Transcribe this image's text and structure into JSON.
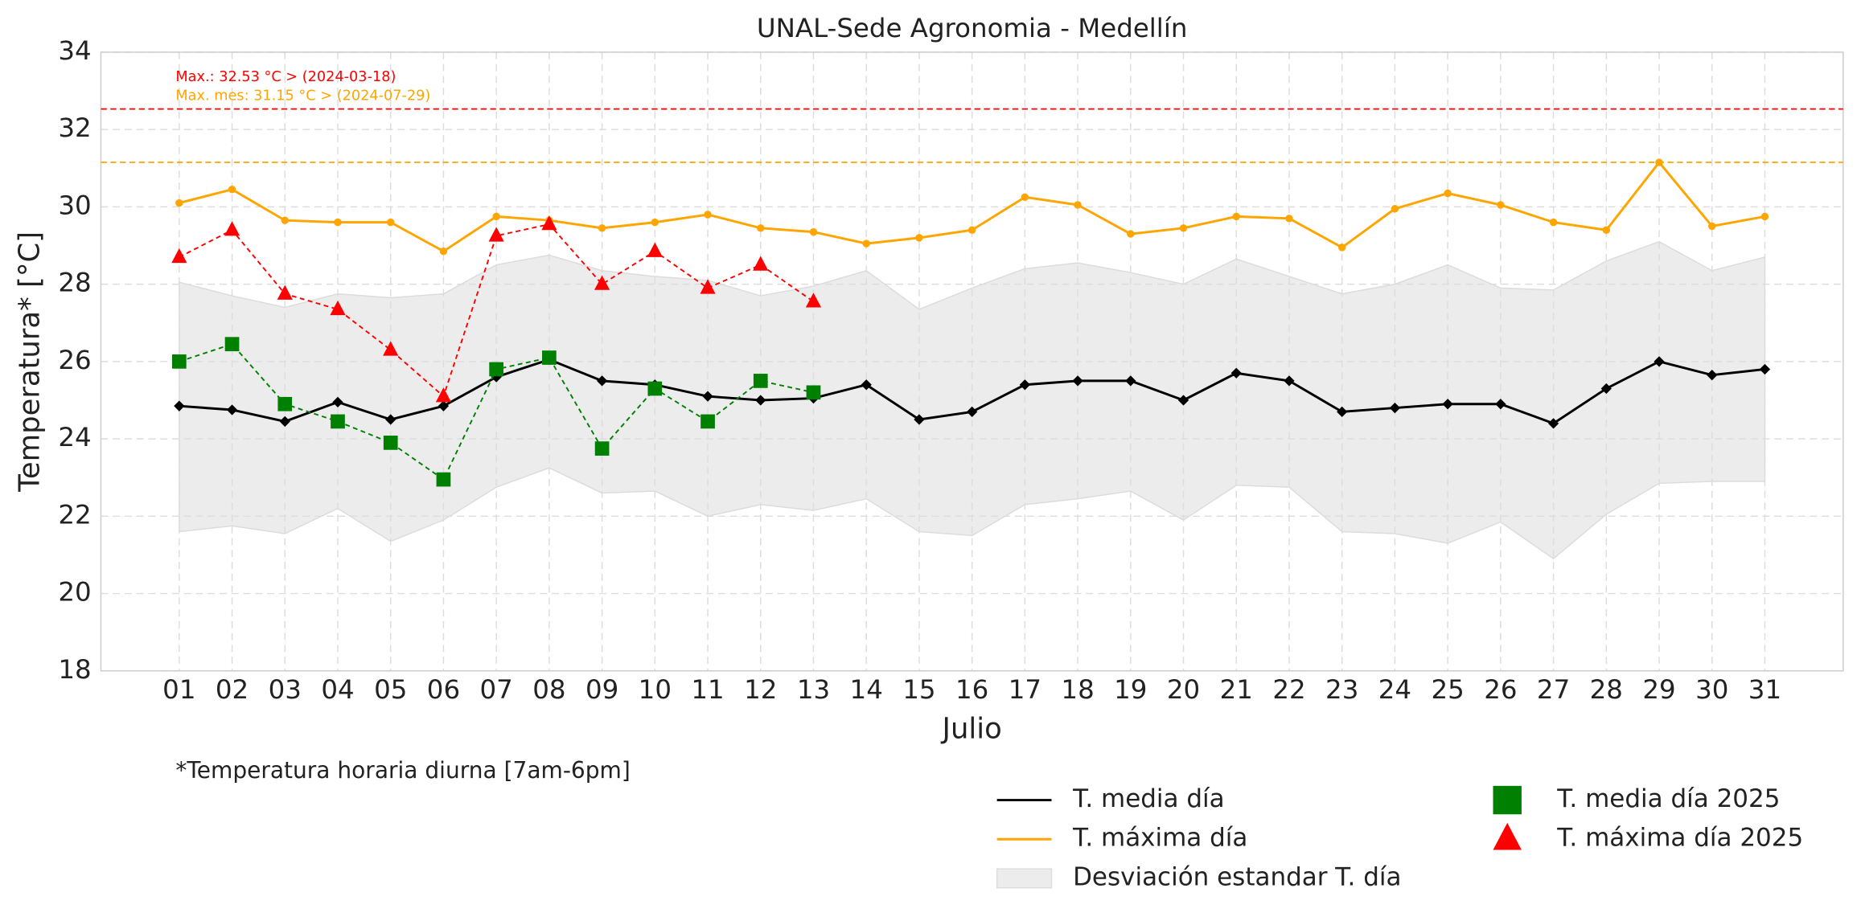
{
  "chart_data": {
    "type": "line",
    "title": "UNAL-Sede Agronomia - Medellín",
    "xlabel": "Julio",
    "ylabel": "Temperatura* [°C]",
    "footnote": "*Temperatura horaria diurna [7am-6pm]",
    "categories": [
      "01",
      "02",
      "03",
      "04",
      "05",
      "06",
      "07",
      "08",
      "09",
      "10",
      "11",
      "12",
      "13",
      "14",
      "15",
      "16",
      "17",
      "18",
      "19",
      "20",
      "21",
      "22",
      "23",
      "24",
      "25",
      "26",
      "27",
      "28",
      "29",
      "30",
      "31"
    ],
    "ylim": [
      18,
      34
    ],
    "yticks": [
      18,
      20,
      22,
      24,
      26,
      28,
      30,
      32,
      34
    ],
    "grid": true,
    "band": {
      "name": "Desviación estandar T. día",
      "color": "#ececec",
      "upper": [
        28.05,
        27.7,
        27.4,
        27.75,
        27.65,
        27.75,
        28.5,
        28.75,
        28.35,
        28.2,
        28.1,
        27.7,
        27.95,
        28.35,
        27.35,
        27.9,
        28.4,
        28.55,
        28.3,
        28.0,
        28.65,
        28.2,
        27.75,
        28.0,
        28.5,
        27.9,
        27.85,
        28.6,
        29.1,
        28.35,
        28.7
      ],
      "lower": [
        21.6,
        21.75,
        21.55,
        22.2,
        21.35,
        21.9,
        22.75,
        23.25,
        22.6,
        22.65,
        22.0,
        22.3,
        22.15,
        22.45,
        21.6,
        21.5,
        22.3,
        22.45,
        22.65,
        21.9,
        22.8,
        22.75,
        21.6,
        21.55,
        21.3,
        21.85,
        20.9,
        22.05,
        22.85,
        22.9,
        22.9
      ]
    },
    "series": [
      {
        "name": "T. media día",
        "color": "#000000",
        "marker": "diamond",
        "linestyle": "solid",
        "values": [
          24.85,
          24.75,
          24.45,
          24.95,
          24.5,
          24.85,
          25.6,
          26.05,
          25.5,
          25.4,
          25.1,
          25.0,
          25.05,
          25.4,
          24.5,
          24.7,
          25.4,
          25.5,
          25.5,
          25.0,
          25.7,
          25.5,
          24.7,
          24.8,
          24.9,
          24.9,
          24.4,
          25.3,
          26.0,
          25.65,
          25.8
        ]
      },
      {
        "name": "T. máxima día",
        "color": "#ffa500",
        "marker": "circle",
        "linestyle": "solid",
        "values": [
          30.1,
          30.45,
          29.65,
          29.6,
          29.6,
          28.85,
          29.75,
          29.65,
          29.45,
          29.6,
          29.8,
          29.45,
          29.35,
          29.05,
          29.2,
          29.4,
          30.25,
          30.05,
          29.3,
          29.45,
          29.75,
          29.7,
          28.95,
          29.95,
          30.35,
          30.05,
          29.6,
          29.4,
          31.15,
          29.5,
          29.75
        ]
      },
      {
        "name": "T. media día 2025",
        "color": "#008000",
        "marker": "square",
        "linestyle": "dashed",
        "values": [
          26.0,
          26.45,
          24.9,
          24.45,
          23.9,
          22.95,
          25.8,
          26.1,
          23.75,
          25.3,
          24.45,
          25.5,
          25.2,
          null,
          null,
          null,
          null,
          null,
          null,
          null,
          null,
          null,
          null,
          null,
          null,
          null,
          null,
          null,
          null,
          null,
          null
        ]
      },
      {
        "name": "T. máxima día 2025",
        "color": "#ff0000",
        "marker": "triangle",
        "linestyle": "dashed",
        "values": [
          28.7,
          29.4,
          27.75,
          27.35,
          26.3,
          25.1,
          29.25,
          29.55,
          28.0,
          28.85,
          27.9,
          28.5,
          27.55,
          null,
          null,
          null,
          null,
          null,
          null,
          null,
          null,
          null,
          null,
          null,
          null,
          null,
          null,
          null,
          null,
          null,
          null
        ]
      }
    ],
    "reference_lines": [
      {
        "value": 32.53,
        "color": "#ff0000",
        "label": "Max.: 32.53 °C  >  (2024-03-18)"
      },
      {
        "value": 31.15,
        "color": "#ffa500",
        "label": "Max. mes: 31.15 °C  >  (2024-07-29)"
      }
    ]
  }
}
